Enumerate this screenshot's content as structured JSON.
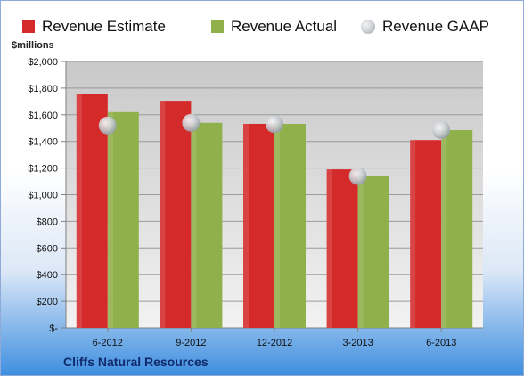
{
  "chart_data": {
    "type": "bar",
    "ylabel": "$millions",
    "ylim": [
      0,
      2000
    ],
    "yticks": [
      "$-",
      "$200",
      "$400",
      "$600",
      "$800",
      "$1,000",
      "$1,200",
      "$1,400",
      "$1,600",
      "$1,800",
      "$2,000"
    ],
    "ytick_values": [
      0,
      200,
      400,
      600,
      800,
      1000,
      1200,
      1400,
      1600,
      1800,
      2000
    ],
    "categories": [
      "6-2012",
      "9-2012",
      "12-2012",
      "3-2013",
      "6-2013"
    ],
    "series": [
      {
        "name": "Revenue Estimate",
        "color": "#d42a2a",
        "values": [
          1755,
          1705,
          1532,
          1190,
          1410
        ]
      },
      {
        "name": "Revenue Actual",
        "color": "#8fb04a",
        "values": [
          1620,
          1540,
          1532,
          1140,
          1485
        ]
      },
      {
        "name": "Revenue GAAP",
        "color": "#c4c8cd",
        "marker": "circle",
        "values": [
          1520,
          1540,
          1530,
          1140,
          1485
        ]
      }
    ],
    "grid": true,
    "legend_position": "top"
  },
  "caption": "Cliffs Natural Resources"
}
